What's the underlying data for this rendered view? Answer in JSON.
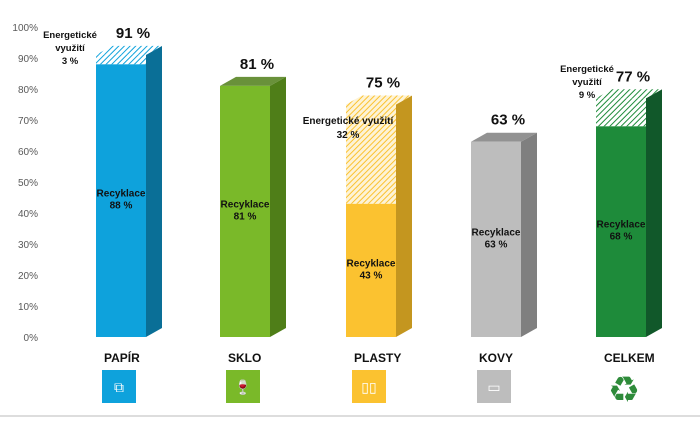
{
  "chart_data": {
    "type": "bar",
    "stacked": true,
    "ylim": [
      0,
      100
    ],
    "yticks": [
      "0%",
      "10%",
      "20%",
      "30%",
      "40%",
      "50%",
      "60%",
      "70%",
      "80%",
      "90%",
      "100%"
    ],
    "categories": [
      "PAPÍR",
      "SKLO",
      "PLASTY",
      "KOVY",
      "CELKEM"
    ],
    "series": [
      {
        "name": "Recyklace",
        "values": [
          88,
          81,
          43,
          63,
          68
        ],
        "labels": [
          "Recyklace\n88 %",
          "Recyklace\n81 %",
          "Recyklace\n43 %",
          "Recyklace\n63 %",
          "Recyklace\n68 %"
        ]
      },
      {
        "name": "Energetické využití",
        "values": [
          3,
          0,
          32,
          0,
          9
        ],
        "labels": [
          "Energetické\nvyužití\n3 %",
          "",
          "Energetické využití\n32 %",
          "",
          "Energetické\nvyužití\n9 %"
        ]
      }
    ],
    "totals": [
      "91 %",
      "81 %",
      "75 %",
      "63 %",
      "77 %"
    ],
    "colors": [
      "#0ea2dc",
      "#7ab929",
      "#fbc230",
      "#bdbdbd",
      "#1e8b3a"
    ],
    "side_colors": [
      "#0a6f97",
      "#4f7e18",
      "#c4961f",
      "#7f7f7f",
      "#11582a"
    ],
    "icons": [
      "box-icon",
      "glass-icon",
      "bottles-icon",
      "can-icon",
      "recycle-icon"
    ]
  }
}
